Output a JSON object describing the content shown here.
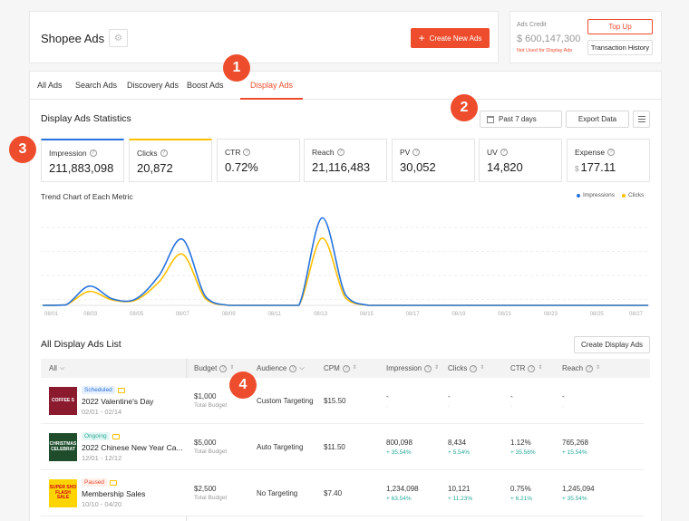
{
  "header": {
    "title": "Shopee Ads",
    "create_label": "Create New Ads",
    "credit_label": "Ads Credit",
    "credit_value": "$ 600,147,300",
    "credit_note": "Not Used for Display Ads",
    "topup_label": "Top Up",
    "history_label": "Transaction History"
  },
  "tabs": [
    "All Ads",
    "Search Ads",
    "Discovery Ads",
    "Boost Ads",
    "Display Ads"
  ],
  "stats": {
    "title": "Display Ads Statistics",
    "date_range": "Past 7 days",
    "export_label": "Export Data"
  },
  "metrics": [
    {
      "label": "Impression",
      "value": "211,883,098",
      "accent": "#2673dd"
    },
    {
      "label": "Clicks",
      "value": "20,872",
      "accent": "#ffbf00"
    },
    {
      "label": "CTR",
      "value": "0.72%"
    },
    {
      "label": "Reach",
      "value": "21,116,483"
    },
    {
      "label": "PV",
      "value": "30,052"
    },
    {
      "label": "UV",
      "value": "14,820"
    },
    {
      "label": "Expense",
      "currency": "$",
      "value": "177.11"
    }
  ],
  "chart_data": {
    "type": "line",
    "title": "Trend Chart of Each Metric",
    "x_ticks": [
      "08/01",
      "08/03",
      "08/05",
      "08/07",
      "08/09",
      "08/11",
      "08/13",
      "08/15",
      "08/17",
      "08/19",
      "08/21",
      "08/23",
      "08/25",
      "08/27"
    ],
    "legend": "top-right",
    "series": [
      {
        "name": "Impressions",
        "color": "#2673dd",
        "x": [
          "08/01",
          "08/02",
          "08/03",
          "08/04",
          "08/05",
          "08/06",
          "08/07",
          "08/08",
          "08/09",
          "08/10",
          "08/11",
          "08/12",
          "08/13",
          "08/14",
          "08/15",
          "08/16",
          "08/17",
          "08/18",
          "08/19",
          "08/20",
          "08/21",
          "08/22",
          "08/23",
          "08/24",
          "08/25",
          "08/26",
          "08/27"
        ],
        "values": [
          0,
          0.5,
          18,
          6,
          6,
          28,
          62,
          8,
          0,
          0,
          0,
          0,
          82,
          10,
          0,
          0,
          0,
          0,
          0,
          0,
          0,
          0,
          0,
          0,
          0,
          0,
          0
        ]
      },
      {
        "name": "Clicks",
        "color": "#ffbf00",
        "x": [
          "08/01",
          "08/02",
          "08/03",
          "08/04",
          "08/05",
          "08/06",
          "08/07",
          "08/08",
          "08/09",
          "08/10",
          "08/11",
          "08/12",
          "08/13",
          "08/14",
          "08/15",
          "08/16",
          "08/17",
          "08/18",
          "08/19",
          "08/20",
          "08/21",
          "08/22",
          "08/23",
          "08/24",
          "08/25",
          "08/26",
          "08/27"
        ],
        "values": [
          0,
          0.5,
          13,
          5,
          5,
          22,
          48,
          6,
          0,
          0,
          0,
          0,
          63,
          7,
          0,
          0,
          0,
          0,
          0,
          0,
          0,
          0,
          0,
          0,
          0,
          0,
          0
        ]
      }
    ]
  },
  "list": {
    "title": "All Display Ads List",
    "create_label": "Create Display Ads",
    "filter_label": "All",
    "columns": [
      "Budget",
      "Audience",
      "CPM",
      "Impression",
      "Clicks",
      "CTR",
      "Reach"
    ],
    "rows": [
      {
        "status": "Scheduled",
        "status_color": "#2673dd",
        "status_bg": "#e8f0fc",
        "name": "2022 Valentine's Day",
        "dates": "02/01 - 02/14",
        "thumb_text": "COFFEE S",
        "thumb_bg": "#8b1a2f",
        "budget": "$1,000",
        "budget_sub": "Total Budget",
        "audience": "Custom Targeting",
        "cpm": "$15.50",
        "impression": "-",
        "impression_sub": "-",
        "clicks": "-",
        "clicks_sub": "-",
        "ctr": "-",
        "ctr_sub": "-",
        "reach": "-",
        "reach_sub": "-"
      },
      {
        "status": "Ongoing",
        "status_color": "#26aa99",
        "status_bg": "#e5f7f4",
        "name": "2022 Chinese New Year Ca...",
        "dates": "12/01 - 12/12",
        "thumb_text": "CHRISTMAS CELEBRAT",
        "thumb_bg": "#1f4d2b",
        "budget": "$5,000",
        "budget_sub": "Total Budget",
        "audience": "Auto Targeting",
        "cpm": "$11.50",
        "impression": "800,098",
        "impression_sub": "+ 35.54%",
        "clicks": "8,434",
        "clicks_sub": "+ 5.54%",
        "ctr": "1.12%",
        "ctr_sub": "+ 35.56%",
        "reach": "765,268",
        "reach_sub": "+ 15.54%"
      },
      {
        "status": "Paused",
        "status_color": "#ee4d2d",
        "status_bg": "#fff0ec",
        "name": "Membership Sales",
        "dates": "10/10 - 04/20",
        "thumb_text": "SUPER SHO FLASH SALE",
        "thumb_bg": "#ffd400",
        "budget": "$2,500",
        "budget_sub": "Total Budget",
        "audience": "No Targeting",
        "cpm": "$7.40",
        "impression": "1,234,098",
        "impression_sub": "+ 63.54%",
        "clicks": "10,121",
        "clicks_sub": "+ 11.23%",
        "ctr": "0.75%",
        "ctr_sub": "+ 6.21%",
        "reach": "1,245,094",
        "reach_sub": "+ 35.54%"
      }
    ]
  },
  "badges": [
    "1",
    "2",
    "3",
    "4"
  ]
}
